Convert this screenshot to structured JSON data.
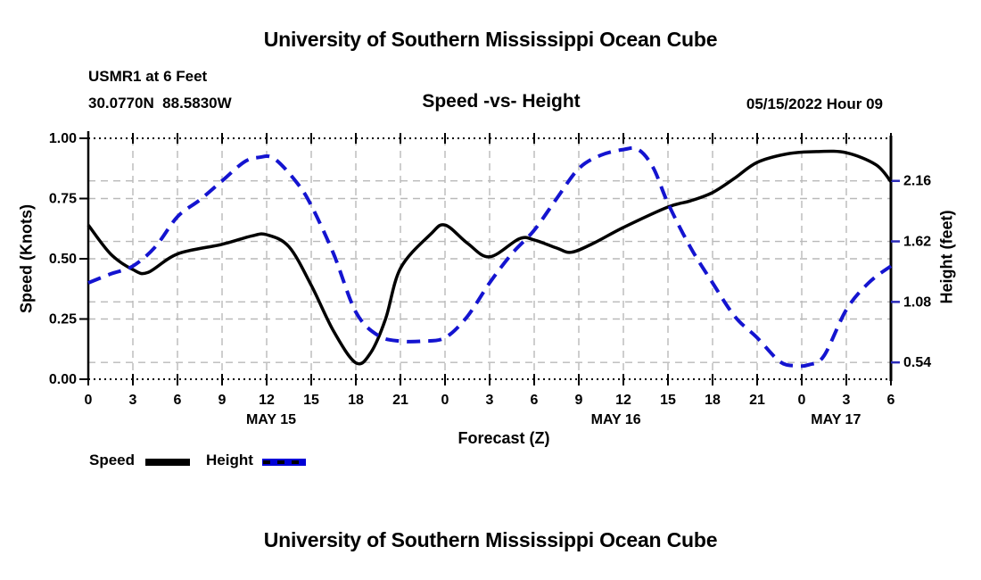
{
  "header": {
    "title": "University of Southern Mississippi Ocean Cube",
    "station": "USMR1 at 6 Feet",
    "coordinates": "30.0770N  88.5830W",
    "chart_title": "Speed -vs- Height",
    "datetime": "05/15/2022 Hour 09"
  },
  "footer": {
    "title": "University of Southern Mississippi Ocean Cube"
  },
  "legend": {
    "speed_label": "Speed",
    "height_label": "Height"
  },
  "colors": {
    "speed_line": "#000000",
    "height_line": "#1414d0",
    "right_tick": "#2a2ab8",
    "grid": "#b9b9b9",
    "frame": "#000000",
    "legend_height_fill": "#0000d6"
  },
  "chart_data": {
    "type": "line",
    "title": "Speed -vs- Height",
    "xlabel": "Forecast (Z)",
    "ylabel_left": "Speed (Knots)",
    "ylabel_right": "Height (feet)",
    "grid": true,
    "x_axis": {
      "unit": "forecast hours (Z)",
      "range_hours": [
        0,
        54
      ],
      "tick_interval_hours": 3,
      "tick_labels": [
        "0",
        "3",
        "6",
        "9",
        "12",
        "15",
        "18",
        "21",
        "0",
        "3",
        "6",
        "9",
        "12",
        "15",
        "18",
        "21",
        "0",
        "3",
        "6"
      ],
      "day_labels": [
        {
          "label": "MAY 15",
          "center_hour": 12.3
        },
        {
          "label": "MAY 16",
          "center_hour": 35.5
        },
        {
          "label": "MAY 17",
          "center_hour": 50.3
        }
      ]
    },
    "y_axis_left": {
      "label": "Speed (Knots)",
      "range": [
        0.0,
        1.0
      ],
      "tick_values": [
        0.0,
        0.25,
        0.5,
        0.75,
        1.0
      ],
      "tick_labels": [
        "0.00",
        "0.25",
        "0.50",
        "0.75",
        "1.00"
      ]
    },
    "y_axis_right": {
      "label": "Height (feet)",
      "range": [
        0.39,
        2.54
      ],
      "tick_values": [
        0.54,
        1.08,
        1.62,
        2.16
      ],
      "tick_labels": [
        "0.54",
        "1.08",
        "1.62",
        "2.16"
      ]
    },
    "series": [
      {
        "name": "Speed",
        "axis": "left",
        "style": "solid",
        "color": "#000000",
        "points": [
          [
            0,
            0.64
          ],
          [
            1.5,
            0.52
          ],
          [
            3,
            0.455
          ],
          [
            4,
            0.443
          ],
          [
            6,
            0.52
          ],
          [
            9,
            0.56
          ],
          [
            11,
            0.595
          ],
          [
            12,
            0.6
          ],
          [
            13.5,
            0.55
          ],
          [
            15,
            0.39
          ],
          [
            16.5,
            0.2
          ],
          [
            18,
            0.068
          ],
          [
            19,
            0.11
          ],
          [
            20,
            0.25
          ],
          [
            21,
            0.46
          ],
          [
            23,
            0.6
          ],
          [
            24,
            0.64
          ],
          [
            25.5,
            0.565
          ],
          [
            27,
            0.508
          ],
          [
            29,
            0.583
          ],
          [
            30,
            0.578
          ],
          [
            31.5,
            0.545
          ],
          [
            32.5,
            0.527
          ],
          [
            34,
            0.565
          ],
          [
            36,
            0.63
          ],
          [
            39,
            0.715
          ],
          [
            40.5,
            0.74
          ],
          [
            42,
            0.775
          ],
          [
            43.5,
            0.835
          ],
          [
            45,
            0.9
          ],
          [
            47,
            0.935
          ],
          [
            49,
            0.945
          ],
          [
            51,
            0.94
          ],
          [
            53,
            0.89
          ],
          [
            54,
            0.82
          ]
        ]
      },
      {
        "name": "Height",
        "axis": "right",
        "style": "dashed",
        "color": "#1414d0",
        "points": [
          [
            0,
            1.25
          ],
          [
            1.5,
            1.33
          ],
          [
            3,
            1.4
          ],
          [
            4.5,
            1.57
          ],
          [
            6,
            1.84
          ],
          [
            7.5,
            1.99
          ],
          [
            9,
            2.16
          ],
          [
            10.5,
            2.33
          ],
          [
            11.5,
            2.37
          ],
          [
            12.5,
            2.36
          ],
          [
            14,
            2.15
          ],
          [
            15,
            1.94
          ],
          [
            16.5,
            1.51
          ],
          [
            18,
            0.99
          ],
          [
            19.5,
            0.78
          ],
          [
            21,
            0.73
          ],
          [
            22.5,
            0.73
          ],
          [
            24,
            0.76
          ],
          [
            25.5,
            0.95
          ],
          [
            27,
            1.25
          ],
          [
            28.5,
            1.51
          ],
          [
            30,
            1.72
          ],
          [
            31.5,
            2.0
          ],
          [
            33,
            2.27
          ],
          [
            34.5,
            2.39
          ],
          [
            36,
            2.44
          ],
          [
            37,
            2.44
          ],
          [
            38,
            2.28
          ],
          [
            39,
            1.96
          ],
          [
            40.5,
            1.57
          ],
          [
            42,
            1.25
          ],
          [
            43.5,
            0.95
          ],
          [
            45,
            0.76
          ],
          [
            46.5,
            0.55
          ],
          [
            47.5,
            0.51
          ],
          [
            48.5,
            0.52
          ],
          [
            49.5,
            0.6
          ],
          [
            51,
            1.01
          ],
          [
            52.5,
            1.25
          ],
          [
            54,
            1.4
          ]
        ]
      }
    ]
  }
}
